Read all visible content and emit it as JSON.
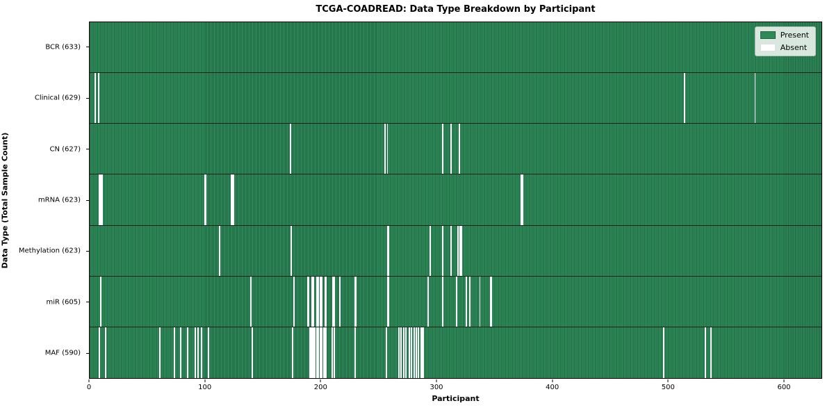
{
  "chart_data": {
    "type": "heatmap",
    "title": "TCGA-COADREAD: Data Type Breakdown by Participant",
    "xlabel": "Participant",
    "ylabel": "Data Type (Total Sample Count)",
    "x_range": [
      0,
      633
    ],
    "x_ticks": [
      0,
      100,
      200,
      300,
      400,
      500,
      600
    ],
    "total_participants": 633,
    "grid": false,
    "legend_position": "upper right",
    "legend": [
      {
        "label": "Present",
        "color": "#2e8b57"
      },
      {
        "label": "Absent",
        "color": "#ffffff"
      }
    ],
    "colors": {
      "present": "#2e8b57",
      "present_edge": "#1f6343",
      "absent": "#ffffff",
      "legend_border": "#b9bcb9"
    },
    "rows": [
      {
        "data_type": "BCR",
        "label": "BCR (633)",
        "present_count": 633,
        "absent_participants": []
      },
      {
        "data_type": "Clinical",
        "label": "Clinical (629)",
        "present_count": 629,
        "absent_participants": [
          4,
          7,
          514,
          575
        ]
      },
      {
        "data_type": "CN",
        "label": "CN (627)",
        "present_count": 627,
        "absent_participants": [
          173,
          255,
          257,
          305,
          312,
          319
        ]
      },
      {
        "data_type": "mRNA",
        "label": "mRNA (623)",
        "present_count": 623,
        "absent_participants": [
          8,
          9,
          10,
          99,
          100,
          122,
          123,
          124,
          373,
          374
        ]
      },
      {
        "data_type": "Methylation",
        "label": "Methylation (623)",
        "present_count": 623,
        "absent_participants": [
          112,
          174,
          257,
          258,
          294,
          305,
          312,
          318,
          320,
          321
        ]
      },
      {
        "data_type": "miR",
        "label": "miR (605)",
        "present_count": 605,
        "absent_participants": [
          9,
          139,
          176,
          188,
          189,
          192,
          193,
          196,
          197,
          199,
          200,
          203,
          204,
          210,
          211,
          216,
          229,
          230,
          257,
          258,
          292,
          305,
          317,
          325,
          328,
          337,
          346,
          347
        ]
      },
      {
        "data_type": "MAF",
        "label": "MAF (590)",
        "present_count": 590,
        "absent_participants": [
          8,
          13,
          60,
          73,
          78,
          84,
          91,
          93,
          96,
          102,
          140,
          175,
          190,
          191,
          192,
          193,
          194,
          196,
          197,
          199,
          200,
          202,
          203,
          204,
          209,
          211,
          229,
          256,
          267,
          269,
          271,
          273,
          276,
          278,
          280,
          282,
          284,
          286,
          287,
          288,
          496,
          532,
          537
        ]
      }
    ]
  }
}
